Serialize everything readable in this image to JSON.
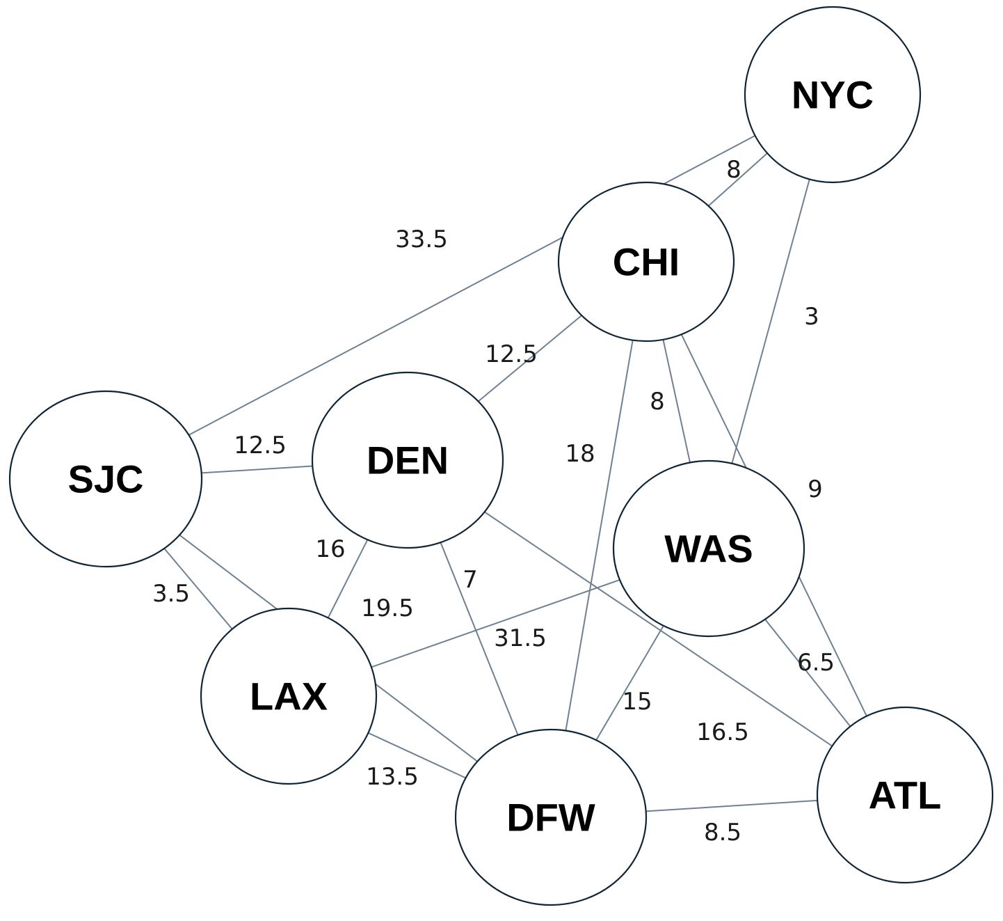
{
  "nodes": [
    {
      "id": "NYC",
      "label": "NYC"
    },
    {
      "id": "CHI",
      "label": "CHI"
    },
    {
      "id": "SJC",
      "label": "SJC"
    },
    {
      "id": "DEN",
      "label": "DEN"
    },
    {
      "id": "WAS",
      "label": "WAS"
    },
    {
      "id": "LAX",
      "label": "LAX"
    },
    {
      "id": "DFW",
      "label": "DFW"
    },
    {
      "id": "ATL",
      "label": "ATL"
    }
  ],
  "edges": [
    {
      "from": "NYC",
      "to": "SJC",
      "weight": "33.5"
    },
    {
      "from": "NYC",
      "to": "CHI",
      "weight": "8"
    },
    {
      "from": "NYC",
      "to": "WAS",
      "weight": "3"
    },
    {
      "from": "CHI",
      "to": "DEN",
      "weight": "12.5"
    },
    {
      "from": "CHI",
      "to": "WAS",
      "weight": "8"
    },
    {
      "from": "CHI",
      "to": "DFW",
      "weight": "18"
    },
    {
      "from": "CHI",
      "to": "ATL",
      "weight": "9"
    },
    {
      "from": "SJC",
      "to": "DEN",
      "weight": "12.5"
    },
    {
      "from": "SJC",
      "to": "LAX",
      "weight": "3.5"
    },
    {
      "from": "SJC",
      "to": "DFW",
      "weight": "19.5"
    },
    {
      "from": "DEN",
      "to": "LAX",
      "weight": "16"
    },
    {
      "from": "DEN",
      "to": "DFW",
      "weight": "7"
    },
    {
      "from": "DEN",
      "to": "ATL",
      "weight": "16.5"
    },
    {
      "from": "WAS",
      "to": "LAX",
      "weight": "31.5"
    },
    {
      "from": "WAS",
      "to": "DFW",
      "weight": "15"
    },
    {
      "from": "WAS",
      "to": "ATL",
      "weight": "6.5"
    },
    {
      "from": "LAX",
      "to": "DFW",
      "weight": "13.5"
    },
    {
      "from": "DFW",
      "to": "ATL",
      "weight": "8.5"
    }
  ]
}
